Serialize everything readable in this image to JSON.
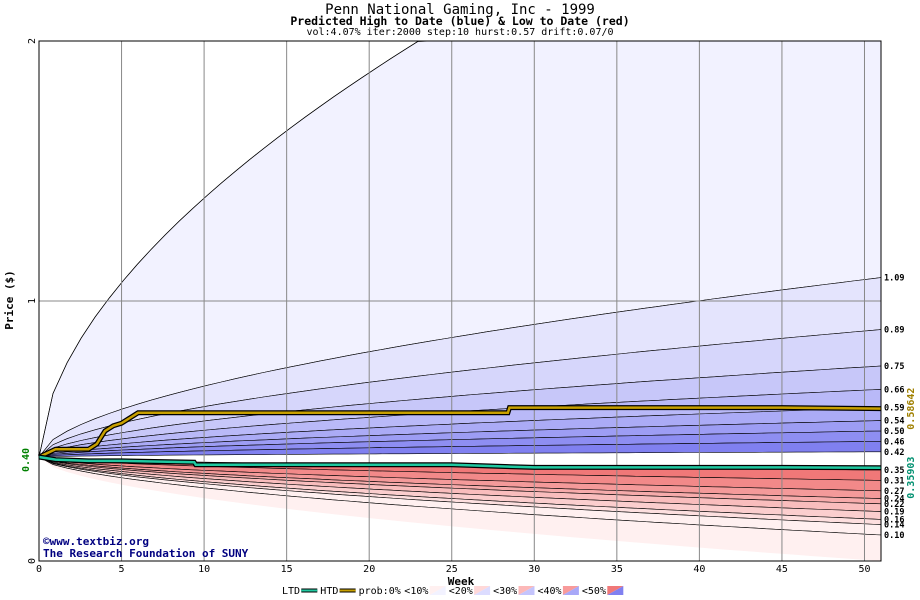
{
  "title": "Penn National Gaming, Inc - 1999",
  "subtitle": "Predicted High to Date (blue) &  Low to Date (red)",
  "params": "vol:4.07% iter:2000 step:10 hurst:0.57 drift:0.07/0",
  "watermark": {
    "line1": "©www.textbiz.org",
    "line2": "The Research Foundation of SUNY"
  },
  "colors": {
    "blue_dark": "#8080f0",
    "red_dark": "#f07878",
    "htd_line": "#c8a000",
    "ltd_line": "#20c8a0",
    "grid": "#888888"
  },
  "chart_data": {
    "type": "area",
    "xlabel": "Week",
    "ylabel": "Price ($)",
    "xlim": [
      0,
      51
    ],
    "ylim": [
      0,
      2
    ],
    "xticks": [
      0,
      5,
      10,
      15,
      20,
      25,
      30,
      35,
      40,
      45,
      50
    ],
    "yticks": [
      0,
      1,
      2
    ],
    "ytick_labels": [
      "0",
      "1",
      "2"
    ],
    "start_price": 0.4,
    "start_price_label": "0.40",
    "high_band_end_values": [
      1.09,
      0.89,
      0.75,
      0.66,
      0.59,
      0.54,
      0.5,
      0.46,
      0.42
    ],
    "high_band_labels": [
      "1.09",
      "0.89",
      "0.75",
      "0.66",
      "0.59",
      "0.54",
      "0.50",
      "0.46",
      "0.42"
    ],
    "low_band_end_values": [
      0.35,
      0.31,
      0.27,
      0.24,
      0.22,
      0.19,
      0.16,
      0.14,
      0.1
    ],
    "low_band_labels": [
      "0.35",
      "0.31",
      "0.27",
      "0.24",
      "0.22",
      "0.19",
      "0.16",
      "0.14",
      "0.10"
    ],
    "series": [
      {
        "name": "HTD",
        "x": [
          0,
          1,
          2,
          3,
          3.5,
          4,
          4.5,
          5,
          5.5,
          6,
          10,
          15,
          20,
          25,
          28.4,
          28.5,
          35,
          40,
          45,
          51
        ],
        "values": [
          0.4,
          0.43,
          0.43,
          0.43,
          0.45,
          0.5,
          0.52,
          0.53,
          0.55,
          0.57,
          0.57,
          0.57,
          0.57,
          0.57,
          0.57,
          0.59,
          0.59,
          0.59,
          0.59,
          0.586
        ]
      },
      {
        "name": "LTD",
        "x": [
          0,
          1,
          3,
          5,
          9.4,
          9.5,
          15,
          20,
          25,
          30,
          35,
          40,
          45,
          51
        ],
        "values": [
          0.4,
          0.39,
          0.385,
          0.385,
          0.38,
          0.37,
          0.37,
          0.37,
          0.37,
          0.36,
          0.36,
          0.36,
          0.36,
          0.359
        ]
      }
    ],
    "end_value_labels": {
      "htd": "0.58642",
      "ltd": "0.35903"
    },
    "legend": {
      "placement": "bottom",
      "items": [
        "LTD",
        "HTD",
        "prob:0%",
        "<10%",
        "<20%",
        "<30%",
        "<40%",
        "<50%"
      ]
    }
  }
}
